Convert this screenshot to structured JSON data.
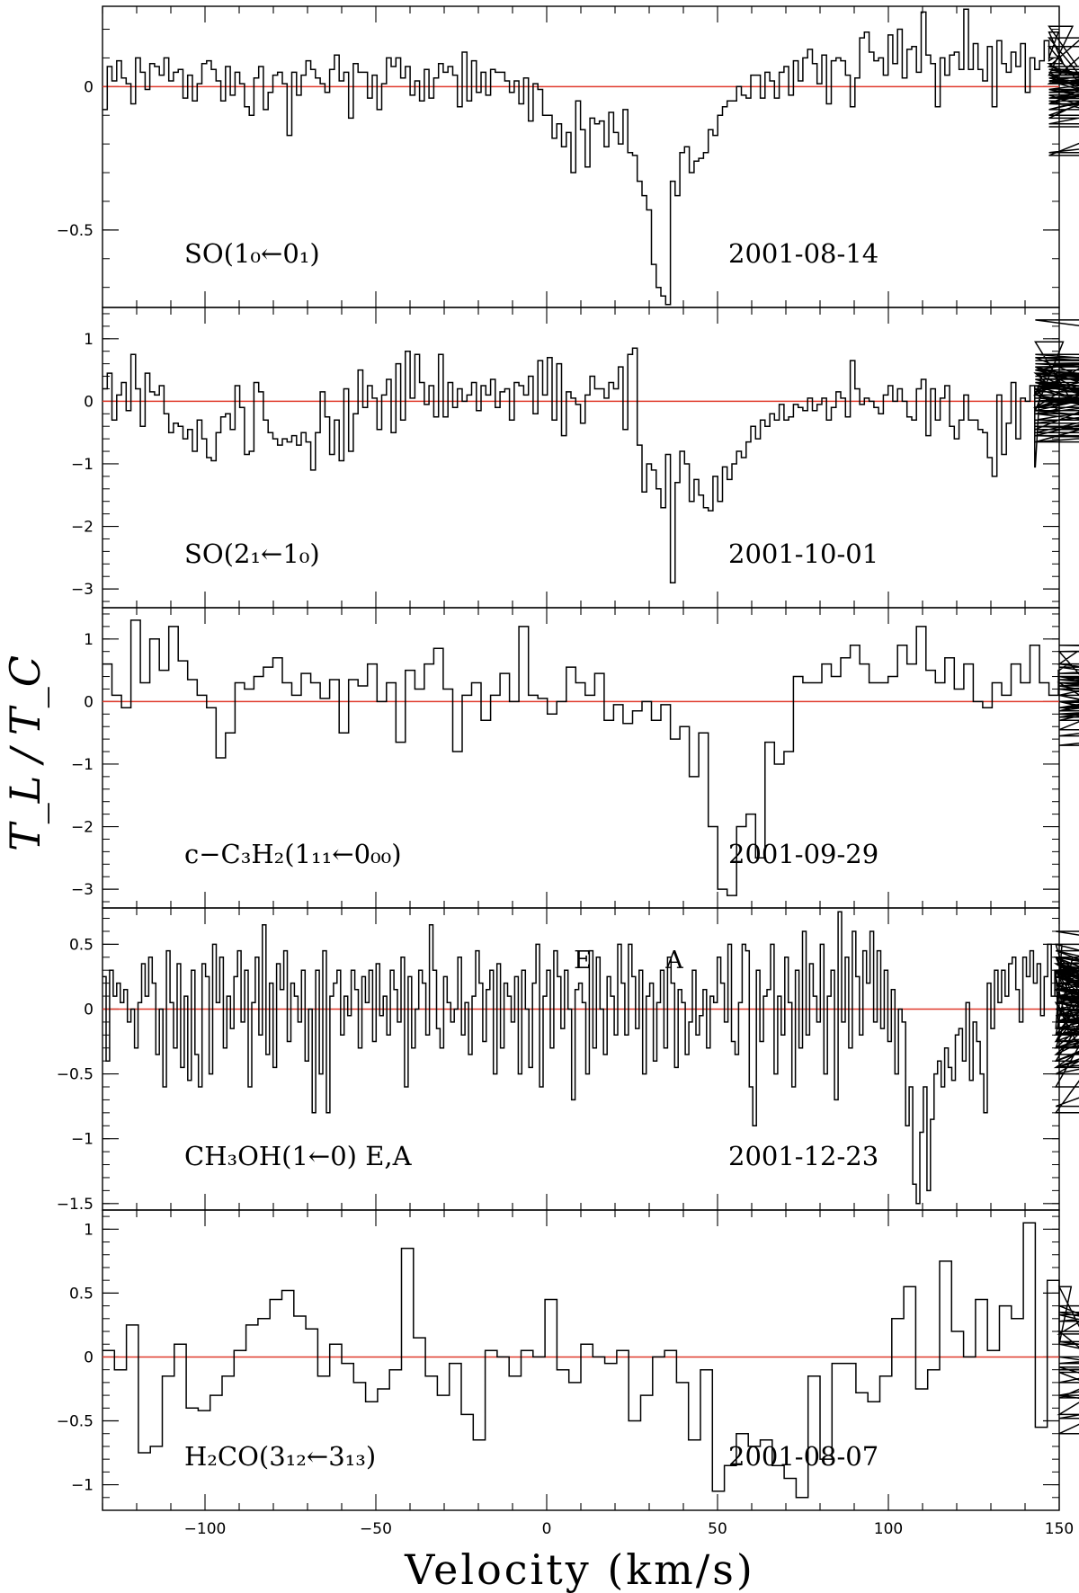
{
  "figure": {
    "xlabel": "Velocity (km/s)",
    "ylabel": "T_L / T_C",
    "xlim": [
      -130,
      150
    ],
    "xticks": [
      -100,
      -50,
      0,
      50,
      100,
      150
    ],
    "xtick_labels": [
      "−100",
      "−50",
      "0",
      "50",
      "100",
      "150"
    ]
  },
  "chart_data": [
    {
      "type": "line",
      "step": true,
      "molecule": "SO(1₀←0₁)",
      "date": "2001-08-14",
      "ylim": [
        -0.77,
        0.28
      ],
      "yticks": [
        0,
        -0.5
      ],
      "ytick_labels": [
        "0",
        "−0.5"
      ],
      "baseline": 0,
      "x_start": -130,
      "x_end": 147,
      "dx": 1.385,
      "values": [
        -0.08,
        0.07,
        0.02,
        0.09,
        0.03,
        0.01,
        -0.06,
        0.1,
        0.05,
        -0.01,
        0.08,
        0.07,
        0.04,
        0.1,
        0.02,
        0.05,
        0.06,
        -0.04,
        0.04,
        -0.05,
        0.01,
        0.08,
        0.09,
        0.06,
        0.02,
        -0.05,
        0.07,
        -0.03,
        0.05,
        0.01,
        -0.07,
        -0.1,
        0.03,
        0.07,
        -0.08,
        -0.02,
        0.04,
        0.05,
        0.01,
        -0.17,
        0.05,
        -0.03,
        0.04,
        0.09,
        0.06,
        0.03,
        0.01,
        -0.02,
        0.06,
        0.11,
        0.02,
        0.05,
        -0.11,
        0.08,
        0.05,
        0.05,
        -0.04,
        0.04,
        -0.08,
        0.01,
        0.1,
        0.07,
        0.1,
        0.03,
        0.07,
        -0.03,
        0.02,
        -0.05,
        0.06,
        -0.04,
        0.03,
        0.08,
        0.05,
        0.07,
        0.04,
        -0.07,
        0.12,
        -0.05,
        0.09,
        -0.02,
        0.05,
        -0.03,
        0.06,
        0.05,
        0.05,
        0.02,
        -0.02,
        0.02,
        -0.06,
        0.03,
        -0.12,
        0.01,
        -0.01,
        -0.1,
        -0.1,
        -0.18,
        -0.13,
        -0.21,
        -0.16,
        -0.3,
        -0.05,
        -0.15,
        -0.28,
        -0.11,
        -0.13,
        -0.12,
        -0.21,
        -0.09,
        -0.16,
        -0.2,
        -0.08,
        -0.23,
        -0.24,
        -0.33,
        -0.38,
        -0.43,
        -0.62,
        -0.7,
        -0.73,
        -0.76,
        -0.33,
        -0.38,
        -0.23,
        -0.21,
        -0.3,
        -0.26,
        -0.25,
        -0.23,
        -0.15,
        -0.17,
        -0.1,
        -0.07,
        -0.05,
        -0.05,
        0,
        -0.03,
        -0.04,
        0.04,
        0.04,
        -0.04,
        0.05,
        0.02,
        -0.04,
        0.05,
        0.07,
        -0.03,
        0.09,
        0.02,
        0.1,
        0.13,
        0.08,
        0.01,
        0.11,
        -0.06,
        0.09,
        0.1,
        0.09,
        0.04,
        -0.07,
        0.03,
        0.17,
        0.19,
        0.12,
        0.09,
        0.1,
        0.04,
        0.18,
        0.08,
        0.2,
        0.03,
        0.13,
        0.14,
        0.05,
        0.26,
        0.11,
        0.08,
        -0.07,
        0.1,
        0.04,
        0.11,
        0.12,
        0.06,
        0.27,
        0.06,
        0.15,
        0.06,
        0.02,
        0.14,
        -0.07,
        0.16,
        0.08,
        0.05,
        0.12,
        0.07,
        0.15,
        -0.02,
        0.1,
        0.06,
        0.09,
        0.16,
        0.09,
        0.1,
        0.19,
        0.08,
        0.04,
        0.21,
        0.07,
        0.17,
        0.01,
        0.14,
        -0.06,
        0.02,
        0.02,
        -0.04,
        -0.01,
        -0.06,
        0.01,
        0.05,
        -0.11,
        0.04,
        -0.1,
        0.02,
        0.07,
        -0.02,
        -0.02,
        0.03,
        0.04,
        -0.08,
        0.04,
        0.06,
        -0.04,
        -0.01,
        0.06,
        -0.03,
        -0.02,
        0.02,
        -0.06,
        -0.08,
        0.06,
        -0.03,
        -0.24,
        0.03,
        -0.13,
        0.01,
        0.05,
        0.02,
        -0.04,
        -0.04,
        -0.05,
        -0.23,
        -0.14
      ]
    },
    {
      "type": "line",
      "step": true,
      "molecule": "SO(2₁←1₀)",
      "date": "2001-10-01",
      "ylim": [
        -3.3,
        1.5
      ],
      "yticks": [
        1,
        0,
        -1,
        -2,
        -3
      ],
      "ytick_labels": [
        "1",
        "0",
        "−1",
        "−2",
        "−3"
      ],
      "baseline": 0,
      "x_start": -130,
      "x_end": 143,
      "dx": 1.385,
      "values": [
        0.2,
        0.45,
        -0.3,
        0.1,
        0.3,
        -0.15,
        0.75,
        0.2,
        -0.4,
        0.45,
        0.15,
        0.1,
        0.25,
        -0.2,
        -0.5,
        -0.35,
        -0.4,
        -0.6,
        -0.45,
        -0.8,
        -0.3,
        -0.6,
        -0.9,
        -0.95,
        -0.5,
        -0.25,
        -0.2,
        -0.45,
        0.25,
        -0.1,
        -0.85,
        -0.8,
        0.3,
        0.15,
        -0.3,
        -0.5,
        -0.6,
        -0.7,
        -0.6,
        -0.65,
        -0.55,
        -0.7,
        -0.5,
        -0.65,
        -1.1,
        -0.5,
        0.15,
        -0.25,
        -0.85,
        -0.3,
        -0.95,
        0.2,
        -0.8,
        -0.2,
        0.5,
        -0.1,
        0.25,
        0.05,
        -0.45,
        0.1,
        0.35,
        -0.5,
        0.6,
        -0.3,
        0.8,
        0.05,
        0.75,
        0.3,
        -0.05,
        0.25,
        -0.25,
        0.75,
        -0.25,
        0.3,
        -0.1,
        0.2,
        0,
        0.1,
        0.3,
        -0.15,
        0.25,
        0.1,
        0.35,
        -0.1,
        0.15,
        0.2,
        -0.3,
        0.3,
        0.25,
        0.1,
        0.4,
        -0.2,
        0.65,
        0.1,
        0.7,
        -0.3,
        0.6,
        -0.55,
        0.15,
        0.05,
        -0.05,
        -0.35,
        0.1,
        0.4,
        0.2,
        0.2,
        0.05,
        0.3,
        0.2,
        0.55,
        -0.45,
        0.75,
        0.85,
        -0.7,
        -1.45,
        -1.0,
        -1.1,
        -1.4,
        -1.7,
        -0.85,
        -2.9,
        -1.3,
        -0.8,
        -1.0,
        -1.6,
        -1.25,
        -1.5,
        -1.7,
        -1.75,
        -1.2,
        -1.6,
        -1.05,
        -1.25,
        -1.0,
        -0.8,
        -0.9,
        -0.65,
        -0.4,
        -0.6,
        -0.3,
        -0.4,
        -0.2,
        -0.3,
        -0.05,
        -0.3,
        -0.25,
        -0.05,
        -0.1,
        -0.15,
        0.05,
        -0.15,
        -0.05,
        0.05,
        -0.3,
        -0.1,
        0.15,
        0.05,
        -0.25,
        0.65,
        0.2,
        -0.05,
        0.05,
        0.0,
        -0.1,
        -0.2,
        0.1,
        0.25,
        0.0,
        0.2,
        0.0,
        -0.25,
        -0.3,
        0.2,
        0.35,
        -0.55,
        0.2,
        -0.3,
        0.05,
        0.25,
        -0.4,
        -0.6,
        -0.3,
        0.1,
        -0.3,
        -0.3,
        -0.45,
        -0.5,
        -0.9,
        -1.2,
        0.1,
        -0.85,
        -0.35,
        0.3,
        -0.6,
        0.05,
        0.0,
        0.25,
        -1.05,
        0.1,
        0.5,
        0.45,
        0.2,
        -0.15,
        0.95,
        0.1,
        0.5,
        0.45,
        0.1,
        0.6,
        0.55,
        0.05,
        0.0,
        0.1,
        -0.1,
        0.7,
        0.15,
        0.45,
        0.3,
        -0.1,
        0.35,
        -0.15,
        0.25,
        -0.35,
        -0.1,
        0.55,
        -0.2,
        0.25,
        -0.1,
        0.3,
        -0.3,
        0.1,
        -0.45,
        0.6,
        0.55,
        -0.1,
        0.3,
        -0.2,
        -0.55,
        0.2,
        -0.65,
        -0.4,
        -0.55,
        -0.65,
        0.3,
        0.0,
        -0.15,
        -0.5,
        0.35,
        -0.65,
        0.45,
        -0.2,
        0.3,
        0.0,
        0.0,
        0.0,
        0.25,
        0.0,
        0.25,
        0.0,
        0.4,
        0.7,
        0.4,
        0.55,
        0.65,
        0.75,
        0.35,
        0.5,
        1.3,
        0.6,
        0.7
      ]
    },
    {
      "type": "line",
      "step": true,
      "molecule": "c−C₃H₂(1₁₁←0₀₀)",
      "date": "2001-09-29",
      "ylim": [
        -3.3,
        1.5
      ],
      "yticks": [
        1,
        0,
        -1,
        -2,
        -3
      ],
      "ytick_labels": [
        "1",
        "0",
        "−1",
        "−2",
        "−3"
      ],
      "baseline": 0,
      "x_start": -130,
      "x_end": 150,
      "dx": 2.77,
      "values": [
        0.6,
        0.1,
        -0.1,
        1.3,
        0.3,
        1.0,
        0.5,
        1.2,
        0.65,
        0.35,
        0.1,
        -0.1,
        -0.9,
        -0.5,
        0.3,
        0.2,
        0.4,
        0.55,
        0.7,
        0.3,
        0.1,
        0.45,
        0.3,
        0.05,
        0.35,
        -0.5,
        0.35,
        0.25,
        0.6,
        0.0,
        0.3,
        -0.65,
        0.5,
        0.2,
        0.6,
        0.85,
        0.2,
        -0.8,
        0.1,
        0.3,
        -0.3,
        0.1,
        0.45,
        0.0,
        1.2,
        0.1,
        0.05,
        -0.2,
        0.0,
        0.55,
        0.3,
        0.1,
        0.45,
        -0.3,
        -0.05,
        -0.35,
        -0.15,
        0.0,
        -0.3,
        -0.05,
        -0.6,
        -0.4,
        -1.2,
        -0.5,
        -2.0,
        -3.0,
        -3.1,
        -2.0,
        -1.8,
        -2.5,
        -0.65,
        -1.0,
        -0.8,
        0.4,
        0.3,
        0.3,
        0.6,
        0.4,
        0.7,
        0.9,
        0.6,
        0.3,
        0.3,
        0.4,
        0.9,
        0.6,
        1.2,
        0.5,
        0.3,
        0.7,
        0.2,
        0.6,
        0.0,
        -0.1,
        0.3,
        0.1,
        0.6,
        0.3,
        0.9,
        0.3,
        0.1,
        0.5,
        0.6,
        0.8,
        0.3,
        0.3,
        -0.15,
        0.1,
        -0.1,
        0.1,
        0.4,
        0.1,
        -0.25,
        0.0,
        -0.45,
        0.4,
        0.2,
        -0.1,
        0.3,
        0.25,
        -0.2,
        0.0,
        -0.15,
        0.3,
        0.0,
        -0.7,
        -0.3,
        0.55,
        0.0,
        0.2,
        0.4,
        0.25,
        0.6,
        0.0,
        -0.25,
        -0.25,
        -0.1,
        0.25,
        0.35,
        -0.2,
        -0.55,
        0.2,
        0.45,
        0.8,
        0.9,
        0.8
      ]
    },
    {
      "type": "line",
      "step": true,
      "molecule": "CH₃OH(1←0) E,A",
      "date": "2001-12-23",
      "ylim": [
        -1.55,
        0.78
      ],
      "yticks": [
        0.5,
        0,
        -0.5,
        -1,
        -1.5
      ],
      "ytick_labels": [
        "0.5",
        "0",
        "−0.5",
        "−1",
        "−1.5"
      ],
      "baseline": 0,
      "annotations": [
        "E",
        "A"
      ],
      "x_start": -130,
      "x_end": 149,
      "dx": 1.04,
      "values": [
        0.25,
        -0.4,
        0.3,
        0.1,
        0.2,
        0.05,
        0.15,
        -0.1,
        0.0,
        -0.3,
        0.05,
        0.35,
        0.1,
        0.4,
        0.2,
        -0.35,
        0.0,
        -0.6,
        0.45,
        0.05,
        -0.3,
        0.35,
        -0.45,
        0.1,
        -0.55,
        0.3,
        -0.35,
        -0.6,
        0.35,
        0.25,
        -0.5,
        0.5,
        0.05,
        0.4,
        -0.3,
        0.1,
        -0.15,
        0.25,
        0.45,
        -0.1,
        0.3,
        -0.6,
        0.05,
        0.4,
        -0.2,
        0.65,
        -0.35,
        0.2,
        -0.45,
        0.35,
        0.15,
        0.45,
        -0.25,
        0.2,
        0.1,
        -0.1,
        0.3,
        -0.4,
        0.0,
        -0.8,
        0.3,
        -0.5,
        0.45,
        -0.8,
        0.1,
        0.2,
        0.3,
        -0.2,
        0.1,
        -0.05,
        0.3,
        0.15,
        -0.3,
        0.25,
        0.05,
        0.3,
        -0.25,
        0.35,
        -0.05,
        0.1,
        -0.2,
        0.3,
        0.15,
        -0.1,
        0.4,
        -0.6,
        0.25,
        -0.3,
        0.0,
        0.3,
        0.2,
        -0.2,
        0.65,
        0.3,
        -0.15,
        -0.3,
        0.25,
        0.05,
        -0.1,
        0.0,
        0.4,
        -0.2,
        0.05,
        -0.35,
        0.1,
        0.45,
        0.2,
        -0.25,
        0.15,
        0.3,
        -0.5,
        0.35,
        -0.3,
        0.2,
        0.1,
        -0.1,
        0.25,
        -0.5,
        0.3,
        0.0,
        -0.45,
        0.2,
        0.5,
        -0.6,
        0.1,
        0.3,
        -0.3,
        0.45,
        0.25,
        -0.15,
        0.3,
        0.0,
        -0.7,
        0.15,
        0.2,
        0.05,
        -0.5,
        0.45,
        -0.3,
        0.4,
        0.0,
        -0.35,
        0.25,
        0.1,
        -0.2,
        0.5,
        0.2,
        -0.2,
        0.5,
        0.25,
        -0.15,
        0.3,
        -0.5,
        0.1,
        0.2,
        -0.4,
        0.05,
        0.3,
        -0.3,
        0.4,
        0.2,
        -0.45,
        0.15,
        0.05,
        -0.35,
        -0.1,
        0.3,
        -0.2,
        -0.05,
        0.15,
        -0.3,
        0.1,
        0.05,
        0.4,
        0.2,
        -0.1,
        0.5,
        -0.25,
        -0.35,
        0.05,
        0.5,
        0.45,
        -0.6,
        -0.9,
        0.3,
        -0.25,
        0.1,
        0.15,
        0.5,
        -0.5,
        0.1,
        -0.2,
        0.4,
        0.05,
        -0.6,
        0.3,
        -0.3,
        0.6,
        -0.2,
        0.35,
        0.1,
        -0.1,
        0.5,
        -0.5,
        0.1,
        0.3,
        -0.7,
        0.75,
        -0.1,
        0.4,
        -0.3,
        0.6,
        0.25,
        -0.2,
        0.45,
        0.2,
        0.6,
        -0.1,
        0.45,
        -0.15,
        0.3,
        -0.25,
        0.15,
        -0.5,
        0.0,
        -0.1,
        -0.9,
        -0.6,
        -1.35,
        -1.5,
        -0.95,
        -0.6,
        -1.4,
        -0.85,
        -0.5,
        -0.4,
        -0.6,
        -0.3,
        -0.45,
        -0.55,
        -0.2,
        -0.15,
        -0.4,
        0.05,
        -0.55,
        -0.1,
        -0.25,
        -0.5,
        -0.8,
        0.2,
        -0.15,
        0.3,
        0.05,
        0.3,
        0.1,
        0.35,
        0.4,
        0.15,
        -0.1,
        0.4,
        0.25,
        0.45,
        0.2,
        0.35,
        -0.05,
        0.25,
        0.5,
        0.1,
        0.3,
        -0.15,
        0.5,
        0.25,
        -0.2,
        0.4,
        0.05,
        -0.3,
        0.3,
        0.15,
        -0.25,
        0.3,
        -0.4,
        0.15,
        0.4,
        -0.2,
        0.35,
        0.05,
        -0.6,
        0.3,
        -0.25,
        0.4,
        0.15,
        0.0,
        -0.3,
        0.3,
        -0.8,
        0.2,
        -0.35,
        0.35,
        0.1,
        -0.2,
        0.4,
        0.05,
        0.25,
        -0.1,
        0.3,
        -0.45,
        0.25,
        0.05,
        0.35,
        -0.2,
        0.1,
        0.3,
        -0.35,
        0.25,
        -0.1,
        0.4,
        -0.4,
        0.15,
        0.1,
        -0.3,
        0.2,
        -0.5,
        0.3,
        0.05,
        -0.25,
        0.35,
        0.0,
        -0.15,
        0.25,
        -0.3,
        0.1,
        0.35,
        -0.4,
        0.2,
        0.0,
        0.3,
        -0.2,
        0.1,
        -0.45,
        0.25,
        -0.1,
        0.3,
        0.45,
        -0.3,
        0.15,
        0.5,
        -0.05,
        0.6,
        0.25,
        0.3,
        -0.4,
        0.4,
        0.15,
        -0.15,
        0.1,
        -0.45,
        0.2,
        0.35,
        -0.1,
        0.05,
        -0.3,
        0.3,
        -0.75,
        0.2,
        0.35,
        0.45,
        -0.15,
        -0.3,
        0.3,
        0.1,
        -0.45,
        -0.2,
        -0.05,
        0.4,
        -0.1,
        0.25,
        0.3,
        0.15,
        -0.2,
        0.05,
        0.1,
        -0.3,
        -0.1,
        0.3,
        -0.5,
        0.15,
        -0.3,
        0.0,
        -0.2,
        0.1,
        0.0,
        -0.1,
        -0.25,
        0.05,
        0.0,
        -0.05,
        0.05
      ]
    },
    {
      "type": "line",
      "step": true,
      "molecule": "H₂CO(3₁₂←3₁₃)",
      "date": "2001-08-07",
      "ylim": [
        -1.2,
        1.15
      ],
      "yticks": [
        1,
        0.5,
        0,
        -0.5,
        -1
      ],
      "ytick_labels": [
        "1",
        "0.5",
        "0",
        "−0.5",
        "−1"
      ],
      "baseline": 0,
      "x_start": -130,
      "x_end": 150,
      "dx": 3.5,
      "values": [
        0.05,
        -0.1,
        0.25,
        -0.75,
        -0.7,
        -0.15,
        0.1,
        -0.4,
        -0.42,
        -0.3,
        -0.15,
        0.05,
        0.25,
        0.3,
        0.45,
        0.52,
        0.32,
        0.22,
        -0.15,
        0.1,
        -0.05,
        -0.2,
        -0.35,
        -0.25,
        -0.1,
        0.85,
        0.15,
        -0.15,
        -0.3,
        -0.05,
        -0.45,
        -0.65,
        0.05,
        0.0,
        -0.15,
        0.05,
        0.0,
        0.45,
        -0.1,
        -0.2,
        0.1,
        0.0,
        -0.05,
        0.05,
        -0.5,
        -0.3,
        0.0,
        0.05,
        -0.2,
        -0.65,
        -0.1,
        -1.05,
        -0.85,
        -0.6,
        -0.7,
        -0.65,
        -0.85,
        -0.95,
        -1.1,
        -0.15,
        -0.8,
        -0.05,
        -0.05,
        -0.28,
        -0.35,
        -0.15,
        0.3,
        0.55,
        -0.25,
        -0.1,
        0.75,
        0.2,
        0.0,
        0.45,
        0.05,
        0.4,
        0.3,
        1.05,
        -0.55,
        0.6,
        0.1,
        0.55,
        0.18,
        0.35,
        0.28,
        0.33,
        0.2,
        -0.32,
        0.0,
        -0.12,
        -0.48,
        -0.3,
        -0.3,
        -0.08,
        -0.45,
        0.4,
        -0.2,
        0.12,
        -0.1,
        -0.05,
        0.1,
        -0.3,
        -0.6,
        0.4
      ]
    }
  ]
}
